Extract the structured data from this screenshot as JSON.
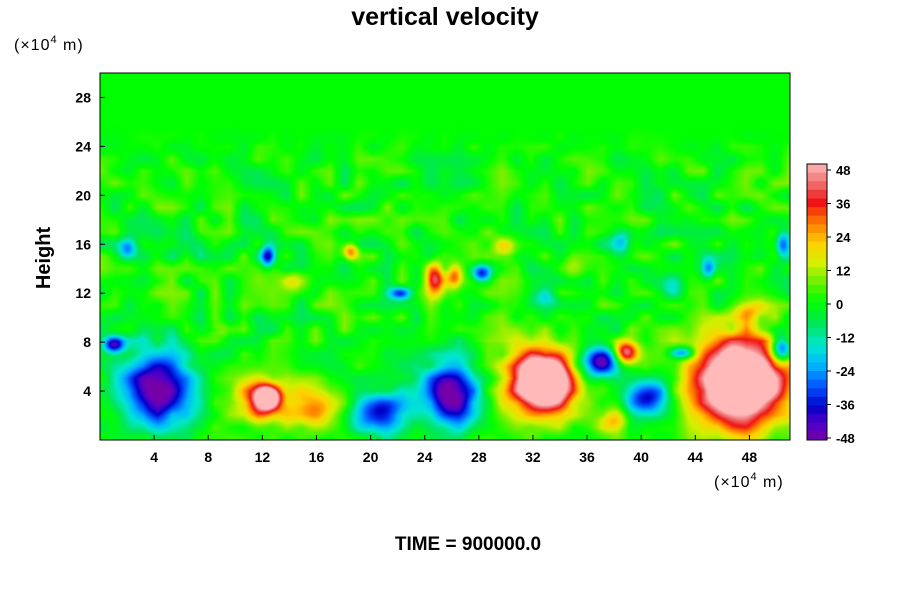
{
  "chart_data": {
    "type": "heatmap",
    "title": "vertical velocity",
    "ylabel": "Height",
    "y_unit_prefix": "(×10",
    "y_unit_exp": "4",
    "y_unit_suffix": " m)",
    "x_unit_prefix": "(×10",
    "x_unit_exp": "4",
    "x_unit_suffix": " m)",
    "footer": "TIME = 900000.0",
    "xlim": [
      0,
      51
    ],
    "ylim": [
      0,
      30
    ],
    "xticks": [
      "4",
      "8",
      "12",
      "16",
      "20",
      "24",
      "28",
      "32",
      "36",
      "40",
      "44",
      "48"
    ],
    "yticks": [
      "4",
      "8",
      "12",
      "16",
      "20",
      "24",
      "28"
    ],
    "colorbar": {
      "min": -48,
      "max": 48,
      "tick_labels": [
        "48",
        "36",
        "24",
        "12",
        "0",
        "-12",
        "-24",
        "-36",
        "-48"
      ]
    },
    "background_value": 0,
    "features": [
      {
        "x": 4.2,
        "y": 4.2,
        "rx": 3.0,
        "ry": 3.6,
        "value": -52
      },
      {
        "x": 1.0,
        "y": 7.8,
        "rx": 0.9,
        "ry": 0.8,
        "value": -40
      },
      {
        "x": 11.8,
        "y": 3.2,
        "rx": 2.3,
        "ry": 2.2,
        "value": 34
      },
      {
        "x": 12.4,
        "y": 3.4,
        "rx": 1.0,
        "ry": 1.1,
        "value": 50
      },
      {
        "x": 16.0,
        "y": 2.6,
        "rx": 2.6,
        "ry": 2.2,
        "value": 30
      },
      {
        "x": 20.6,
        "y": 2.2,
        "rx": 2.6,
        "ry": 2.0,
        "value": -40
      },
      {
        "x": 26.0,
        "y": 3.8,
        "rx": 2.5,
        "ry": 3.0,
        "value": -50
      },
      {
        "x": 32.5,
        "y": 4.8,
        "rx": 3.3,
        "ry": 3.5,
        "value": 46
      },
      {
        "x": 32.9,
        "y": 4.7,
        "rx": 2.0,
        "ry": 2.2,
        "value": 52
      },
      {
        "x": 37.0,
        "y": 6.3,
        "rx": 1.8,
        "ry": 1.4,
        "value": -46
      },
      {
        "x": 38.9,
        "y": 7.1,
        "rx": 1.1,
        "ry": 1.1,
        "value": 50
      },
      {
        "x": 40.5,
        "y": 3.4,
        "rx": 2.0,
        "ry": 1.8,
        "value": -38
      },
      {
        "x": 38.0,
        "y": 1.6,
        "rx": 1.4,
        "ry": 1.2,
        "value": 22
      },
      {
        "x": 47.2,
        "y": 4.8,
        "rx": 4.3,
        "ry": 4.5,
        "value": 46
      },
      {
        "x": 47.4,
        "y": 4.6,
        "rx": 3.2,
        "ry": 3.5,
        "value": 52
      },
      {
        "x": 50.4,
        "y": 7.5,
        "rx": 0.9,
        "ry": 1.3,
        "value": -44
      },
      {
        "x": 43.0,
        "y": 7.1,
        "rx": 1.1,
        "ry": 0.6,
        "value": -32
      },
      {
        "x": 24.8,
        "y": 13.2,
        "rx": 0.8,
        "ry": 1.6,
        "value": 34
      },
      {
        "x": 26.2,
        "y": 13.4,
        "rx": 0.7,
        "ry": 1.2,
        "value": 28
      },
      {
        "x": 28.2,
        "y": 13.6,
        "rx": 0.8,
        "ry": 0.8,
        "value": -32
      },
      {
        "x": 12.4,
        "y": 15.0,
        "rx": 0.6,
        "ry": 1.1,
        "value": -34
      },
      {
        "x": 22.2,
        "y": 12.0,
        "rx": 1.0,
        "ry": 0.6,
        "value": -30
      },
      {
        "x": 18.5,
        "y": 15.4,
        "rx": 0.7,
        "ry": 0.8,
        "value": 30
      },
      {
        "x": 2.0,
        "y": 15.5,
        "rx": 0.8,
        "ry": 1.0,
        "value": -22
      },
      {
        "x": 38.5,
        "y": 16.2,
        "rx": 1.0,
        "ry": 1.4,
        "value": -24
      },
      {
        "x": 50.5,
        "y": 16.0,
        "rx": 0.6,
        "ry": 1.2,
        "value": -26
      },
      {
        "x": 45.0,
        "y": 14.0,
        "rx": 0.6,
        "ry": 1.0,
        "value": -22
      },
      {
        "x": 14.5,
        "y": 13.0,
        "rx": 1.2,
        "ry": 1.1,
        "value": 16
      },
      {
        "x": 30.0,
        "y": 15.5,
        "rx": 1.2,
        "ry": 1.3,
        "value": 16
      },
      {
        "x": 35.0,
        "y": 14.0,
        "rx": 1.0,
        "ry": 1.2,
        "value": 14
      },
      {
        "x": 6.5,
        "y": 16.0,
        "rx": 1.5,
        "ry": 1.4,
        "value": -12
      },
      {
        "x": 42.0,
        "y": 12.5,
        "rx": 1.5,
        "ry": 1.3,
        "value": -14
      },
      {
        "x": 33.0,
        "y": 11.5,
        "rx": 1.4,
        "ry": 1.0,
        "value": -14
      },
      {
        "x": 9.0,
        "y": 9.0,
        "rx": 1.2,
        "ry": 0.8,
        "value": 14
      },
      {
        "x": 48.0,
        "y": 10.5,
        "rx": 1.4,
        "ry": 1.0,
        "value": 16
      }
    ]
  }
}
